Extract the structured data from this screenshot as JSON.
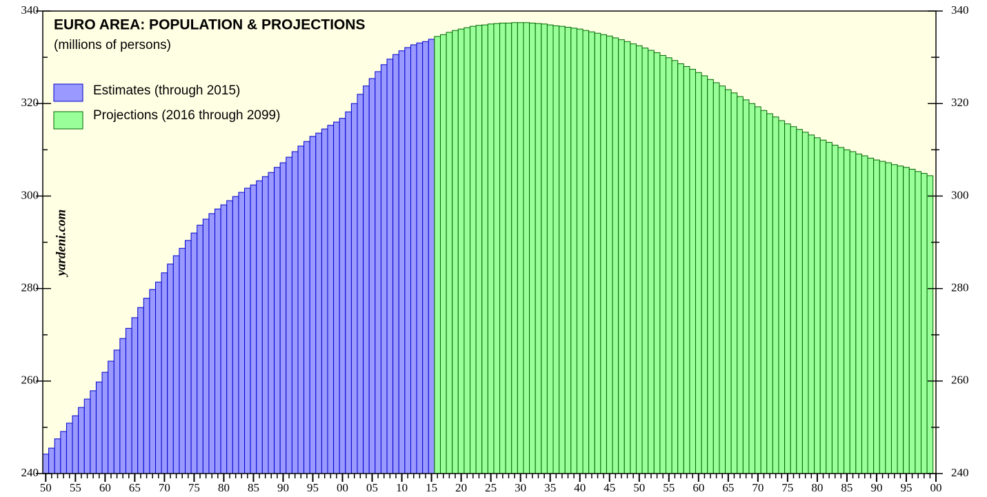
{
  "chart_data": {
    "type": "bar",
    "title": "EURO AREA: POPULATION & PROJECTIONS",
    "subtitle": "(millions of persons)",
    "watermark": "yardeni.com",
    "xlim": [
      1949.5,
      2100
    ],
    "xticks": [
      {
        "value": 1950,
        "label": "50"
      },
      {
        "value": 1955,
        "label": "55"
      },
      {
        "value": 1960,
        "label": "60"
      },
      {
        "value": 1965,
        "label": "65"
      },
      {
        "value": 1970,
        "label": "70"
      },
      {
        "value": 1975,
        "label": "75"
      },
      {
        "value": 1980,
        "label": "80"
      },
      {
        "value": 1985,
        "label": "85"
      },
      {
        "value": 1990,
        "label": "90"
      },
      {
        "value": 1995,
        "label": "95"
      },
      {
        "value": 2000,
        "label": "00"
      },
      {
        "value": 2005,
        "label": "05"
      },
      {
        "value": 2010,
        "label": "10"
      },
      {
        "value": 2015,
        "label": "15"
      },
      {
        "value": 2020,
        "label": "20"
      },
      {
        "value": 2025,
        "label": "25"
      },
      {
        "value": 2030,
        "label": "30"
      },
      {
        "value": 2035,
        "label": "35"
      },
      {
        "value": 2040,
        "label": "40"
      },
      {
        "value": 2045,
        "label": "45"
      },
      {
        "value": 2050,
        "label": "50"
      },
      {
        "value": 2055,
        "label": "55"
      },
      {
        "value": 2060,
        "label": "60"
      },
      {
        "value": 2065,
        "label": "65"
      },
      {
        "value": 2070,
        "label": "70"
      },
      {
        "value": 2075,
        "label": "75"
      },
      {
        "value": 2080,
        "label": "80"
      },
      {
        "value": 2085,
        "label": "85"
      },
      {
        "value": 2090,
        "label": "90"
      },
      {
        "value": 2095,
        "label": "95"
      },
      {
        "value": 2100,
        "label": "00"
      }
    ],
    "ylim": [
      240,
      340
    ],
    "yticks": [
      240,
      260,
      280,
      300,
      320,
      340
    ],
    "yminor_ticks": [
      250,
      270,
      290,
      310,
      330
    ],
    "series": [
      {
        "name": "Estimates (through 2015)",
        "color": "#9999ff",
        "edge": "#0000cc",
        "x": [
          1950,
          1951,
          1952,
          1953,
          1954,
          1955,
          1956,
          1957,
          1958,
          1959,
          1960,
          1961,
          1962,
          1963,
          1964,
          1965,
          1966,
          1967,
          1968,
          1969,
          1970,
          1971,
          1972,
          1973,
          1974,
          1975,
          1976,
          1977,
          1978,
          1979,
          1980,
          1981,
          1982,
          1983,
          1984,
          1985,
          1986,
          1987,
          1988,
          1989,
          1990,
          1991,
          1992,
          1993,
          1994,
          1995,
          1996,
          1997,
          1998,
          1999,
          2000,
          2001,
          2002,
          2003,
          2004,
          2005,
          2006,
          2007,
          2008,
          2009,
          2010,
          2011,
          2012,
          2013,
          2014,
          2015
        ],
        "values": [
          244.2,
          245.5,
          247.5,
          249.1,
          250.9,
          252.5,
          254.3,
          256.1,
          257.9,
          259.8,
          261.9,
          264.3,
          266.7,
          269.2,
          271.4,
          273.7,
          275.9,
          277.9,
          279.8,
          281.4,
          283.4,
          285.3,
          287.1,
          288.7,
          290.4,
          292.0,
          293.7,
          295.0,
          296.2,
          297.2,
          298.1,
          299.0,
          299.9,
          300.8,
          301.7,
          302.4,
          303.3,
          304.2,
          305.1,
          306.2,
          307.2,
          308.4,
          309.6,
          310.8,
          311.8,
          312.9,
          313.6,
          314.5,
          315.3,
          316.0,
          316.8,
          318.2,
          320.0,
          322.0,
          323.8,
          325.4,
          326.9,
          328.4,
          329.6,
          330.6,
          331.4,
          332.1,
          332.7,
          333.1,
          333.4,
          333.9
        ]
      },
      {
        "name": "Projections (2016 through 2099)",
        "color": "#99ff99",
        "edge": "#006600",
        "x": [
          2016,
          2017,
          2018,
          2019,
          2020,
          2021,
          2022,
          2023,
          2024,
          2025,
          2026,
          2027,
          2028,
          2029,
          2030,
          2031,
          2032,
          2033,
          2034,
          2035,
          2036,
          2037,
          2038,
          2039,
          2040,
          2041,
          2042,
          2043,
          2044,
          2045,
          2046,
          2047,
          2048,
          2049,
          2050,
          2051,
          2052,
          2053,
          2054,
          2055,
          2056,
          2057,
          2058,
          2059,
          2060,
          2061,
          2062,
          2063,
          2064,
          2065,
          2066,
          2067,
          2068,
          2069,
          2070,
          2071,
          2072,
          2073,
          2074,
          2075,
          2076,
          2077,
          2078,
          2079,
          2080,
          2081,
          2082,
          2083,
          2084,
          2085,
          2086,
          2087,
          2088,
          2089,
          2090,
          2091,
          2092,
          2093,
          2094,
          2095,
          2096,
          2097,
          2098,
          2099
        ],
        "values": [
          334.5,
          334.9,
          335.4,
          335.8,
          336.1,
          336.4,
          336.7,
          336.9,
          337.0,
          337.2,
          337.3,
          337.4,
          337.4,
          337.5,
          337.5,
          337.5,
          337.4,
          337.3,
          337.2,
          337.0,
          336.8,
          336.7,
          336.5,
          336.3,
          336.1,
          335.8,
          335.5,
          335.2,
          334.9,
          334.6,
          334.2,
          333.8,
          333.4,
          332.9,
          332.5,
          332.0,
          331.5,
          331.0,
          330.4,
          329.9,
          329.3,
          328.6,
          328.0,
          327.4,
          326.7,
          326.0,
          325.2,
          324.5,
          323.8,
          323.0,
          322.3,
          321.5,
          320.8,
          320.0,
          319.3,
          318.5,
          317.8,
          317.1,
          316.3,
          315.6,
          315.0,
          314.4,
          313.8,
          313.2,
          312.6,
          312.1,
          311.6,
          311.0,
          310.5,
          310.0,
          309.6,
          309.1,
          308.7,
          308.2,
          307.8,
          307.5,
          307.2,
          306.8,
          306.5,
          306.2,
          305.8,
          305.3,
          304.9,
          304.4
        ]
      }
    ]
  }
}
